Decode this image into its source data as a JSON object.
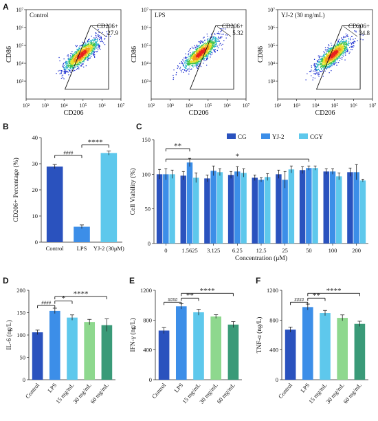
{
  "chart_data": [
    {
      "panel": "A",
      "type": "scatter",
      "title": "Control",
      "xlabel": "CD206",
      "ylabel": "CD86",
      "gate_label": "CD206+",
      "gate_value": "27.9",
      "xticks": [
        "10²",
        "10³",
        "10⁴",
        "10⁵",
        "10⁶",
        "10⁷"
      ],
      "yticks": [
        "10³",
        "10⁴",
        "10⁵",
        "10⁶",
        "10⁷"
      ],
      "cloud_center_log": [
        4.9,
        4.5
      ]
    },
    {
      "panel": "A",
      "type": "scatter",
      "title": "LPS",
      "xlabel": "CD206",
      "ylabel": "CD86",
      "gate_label": "CD206+",
      "gate_value": "5.32",
      "xticks": [
        "10²",
        "10³",
        "10⁴",
        "10⁵",
        "10⁶",
        "10⁷"
      ],
      "yticks": [
        "10³",
        "10⁴",
        "10⁵",
        "10⁶",
        "10⁷"
      ],
      "cloud_center_log": [
        4.6,
        4.6
      ]
    },
    {
      "panel": "A",
      "type": "scatter",
      "title": "YJ-2 (30 mg/mL)",
      "xlabel": "CD206",
      "ylabel": "CD86",
      "gate_label": "CD206+",
      "gate_value": "34.8",
      "xticks": [
        "10²",
        "10³",
        "10⁴",
        "10⁵",
        "10⁶",
        "10⁷"
      ],
      "yticks": [
        "10³",
        "10⁴",
        "10⁵",
        "10⁶",
        "10⁷"
      ],
      "cloud_center_log": [
        4.9,
        4.5
      ]
    },
    {
      "panel": "B",
      "type": "bar",
      "ylabel": "CD206+ Percentage (%)",
      "xlabel": "",
      "ylim": [
        0,
        40
      ],
      "yticks": [
        0,
        10,
        20,
        30,
        40
      ],
      "categories": [
        "Control",
        "LPS",
        "YJ-2 (30μM)"
      ],
      "values": [
        28.9,
        5.9,
        34.1
      ],
      "errors": [
        0.8,
        0.7,
        0.8
      ],
      "colors": [
        "#2a52be",
        "#3c8ee8",
        "#5ec8ec"
      ],
      "annotations": [
        {
          "label": "####",
          "from": 0,
          "to": 1,
          "y": 33.2
        },
        {
          "label": "****",
          "from": 1,
          "to": 2,
          "y": 37.2
        }
      ]
    },
    {
      "panel": "C",
      "type": "bar",
      "ylabel": "Cell Viability (%)",
      "xlabel": "Concentration (μM)",
      "ylim": [
        0,
        150
      ],
      "yticks": [
        0,
        50,
        100,
        150
      ],
      "categories": [
        "0",
        "1.5625",
        "3.125",
        "6.25",
        "12.5",
        "25",
        "50",
        "100",
        "200"
      ],
      "series": [
        {
          "name": "CG",
          "color": "#2a52be",
          "values": [
            100,
            98,
            94,
            99,
            95,
            100,
            106,
            104,
            103
          ],
          "errors": [
            7,
            6,
            5,
            5,
            4,
            6,
            5,
            4,
            6
          ]
        },
        {
          "name": "YJ-2",
          "color": "#3c8ee8",
          "values": [
            100,
            117,
            105,
            104,
            92,
            92,
            109,
            104,
            103
          ],
          "errors": [
            8,
            6,
            7,
            7,
            3,
            12,
            3,
            4,
            11
          ]
        },
        {
          "name": "CGY",
          "color": "#5ec8ec",
          "values": [
            100,
            95,
            103,
            102,
            96,
            107,
            109,
            97,
            91
          ],
          "errors": [
            6,
            7,
            5,
            6,
            5,
            5,
            3,
            5,
            2
          ]
        }
      ],
      "annotations": [
        {
          "label": "**",
          "from": 0,
          "to": 1,
          "y": 137
        },
        {
          "label": "*",
          "from": 0,
          "to": 6,
          "y": 122
        }
      ]
    },
    {
      "panel": "D",
      "type": "bar",
      "ylabel": "IL-6 (ng/L)",
      "xlabel": "",
      "ylim": [
        0,
        200
      ],
      "yticks": [
        0,
        50,
        100,
        150,
        200
      ],
      "categories": [
        "Control",
        "LPS",
        "15 mg/mL",
        "30 mg/mL",
        "60 mg/mL"
      ],
      "values": [
        106,
        154,
        139,
        129,
        122
      ],
      "errors": [
        5,
        6,
        6,
        6,
        14
      ],
      "colors": [
        "#2a52be",
        "#3c8ee8",
        "#5ec8ec",
        "#8ed88e",
        "#3a9a78"
      ],
      "annotations": [
        {
          "label": "####",
          "from": 0,
          "to": 1,
          "y": 166
        },
        {
          "label": "*",
          "from": 1,
          "to": 2,
          "y": 176
        },
        {
          "label": "****",
          "from": 1,
          "to": 4,
          "y": 186
        }
      ]
    },
    {
      "panel": "E",
      "type": "bar",
      "ylabel": "IFN-γ (ng/L)",
      "xlabel": "",
      "ylim": [
        0,
        1200
      ],
      "yticks": [
        0,
        400,
        800,
        1200
      ],
      "categories": [
        "Control",
        "LPS",
        "15 mg/mL",
        "30 mg/mL",
        "60 mg/mL"
      ],
      "values": [
        660,
        985,
        905,
        848,
        740
      ],
      "errors": [
        40,
        35,
        40,
        25,
        40
      ],
      "colors": [
        "#2a52be",
        "#3c8ee8",
        "#5ec8ec",
        "#8ed88e",
        "#3a9a78"
      ],
      "annotations": [
        {
          "label": "####",
          "from": 0,
          "to": 1,
          "y": 1040
        },
        {
          "label": "**",
          "from": 1,
          "to": 2,
          "y": 1095
        },
        {
          "label": "****",
          "from": 1,
          "to": 4,
          "y": 1160
        }
      ]
    },
    {
      "panel": "F",
      "type": "bar",
      "ylabel": "TNF-α (ng/L)",
      "xlabel": "",
      "ylim": [
        0,
        1200
      ],
      "yticks": [
        0,
        400,
        800,
        1200
      ],
      "categories": [
        "Control",
        "LPS",
        "15 mg/mL",
        "30 mg/mL",
        "60 mg/mL"
      ],
      "values": [
        672,
        975,
        895,
        830,
        750
      ],
      "errors": [
        35,
        40,
        35,
        40,
        35
      ],
      "colors": [
        "#2a52be",
        "#3c8ee8",
        "#5ec8ec",
        "#8ed88e",
        "#3a9a78"
      ],
      "annotations": [
        {
          "label": "####",
          "from": 0,
          "to": 1,
          "y": 1040
        },
        {
          "label": "**",
          "from": 1,
          "to": 2,
          "y": 1095
        },
        {
          "label": "****",
          "from": 1,
          "to": 4,
          "y": 1160
        }
      ]
    }
  ]
}
